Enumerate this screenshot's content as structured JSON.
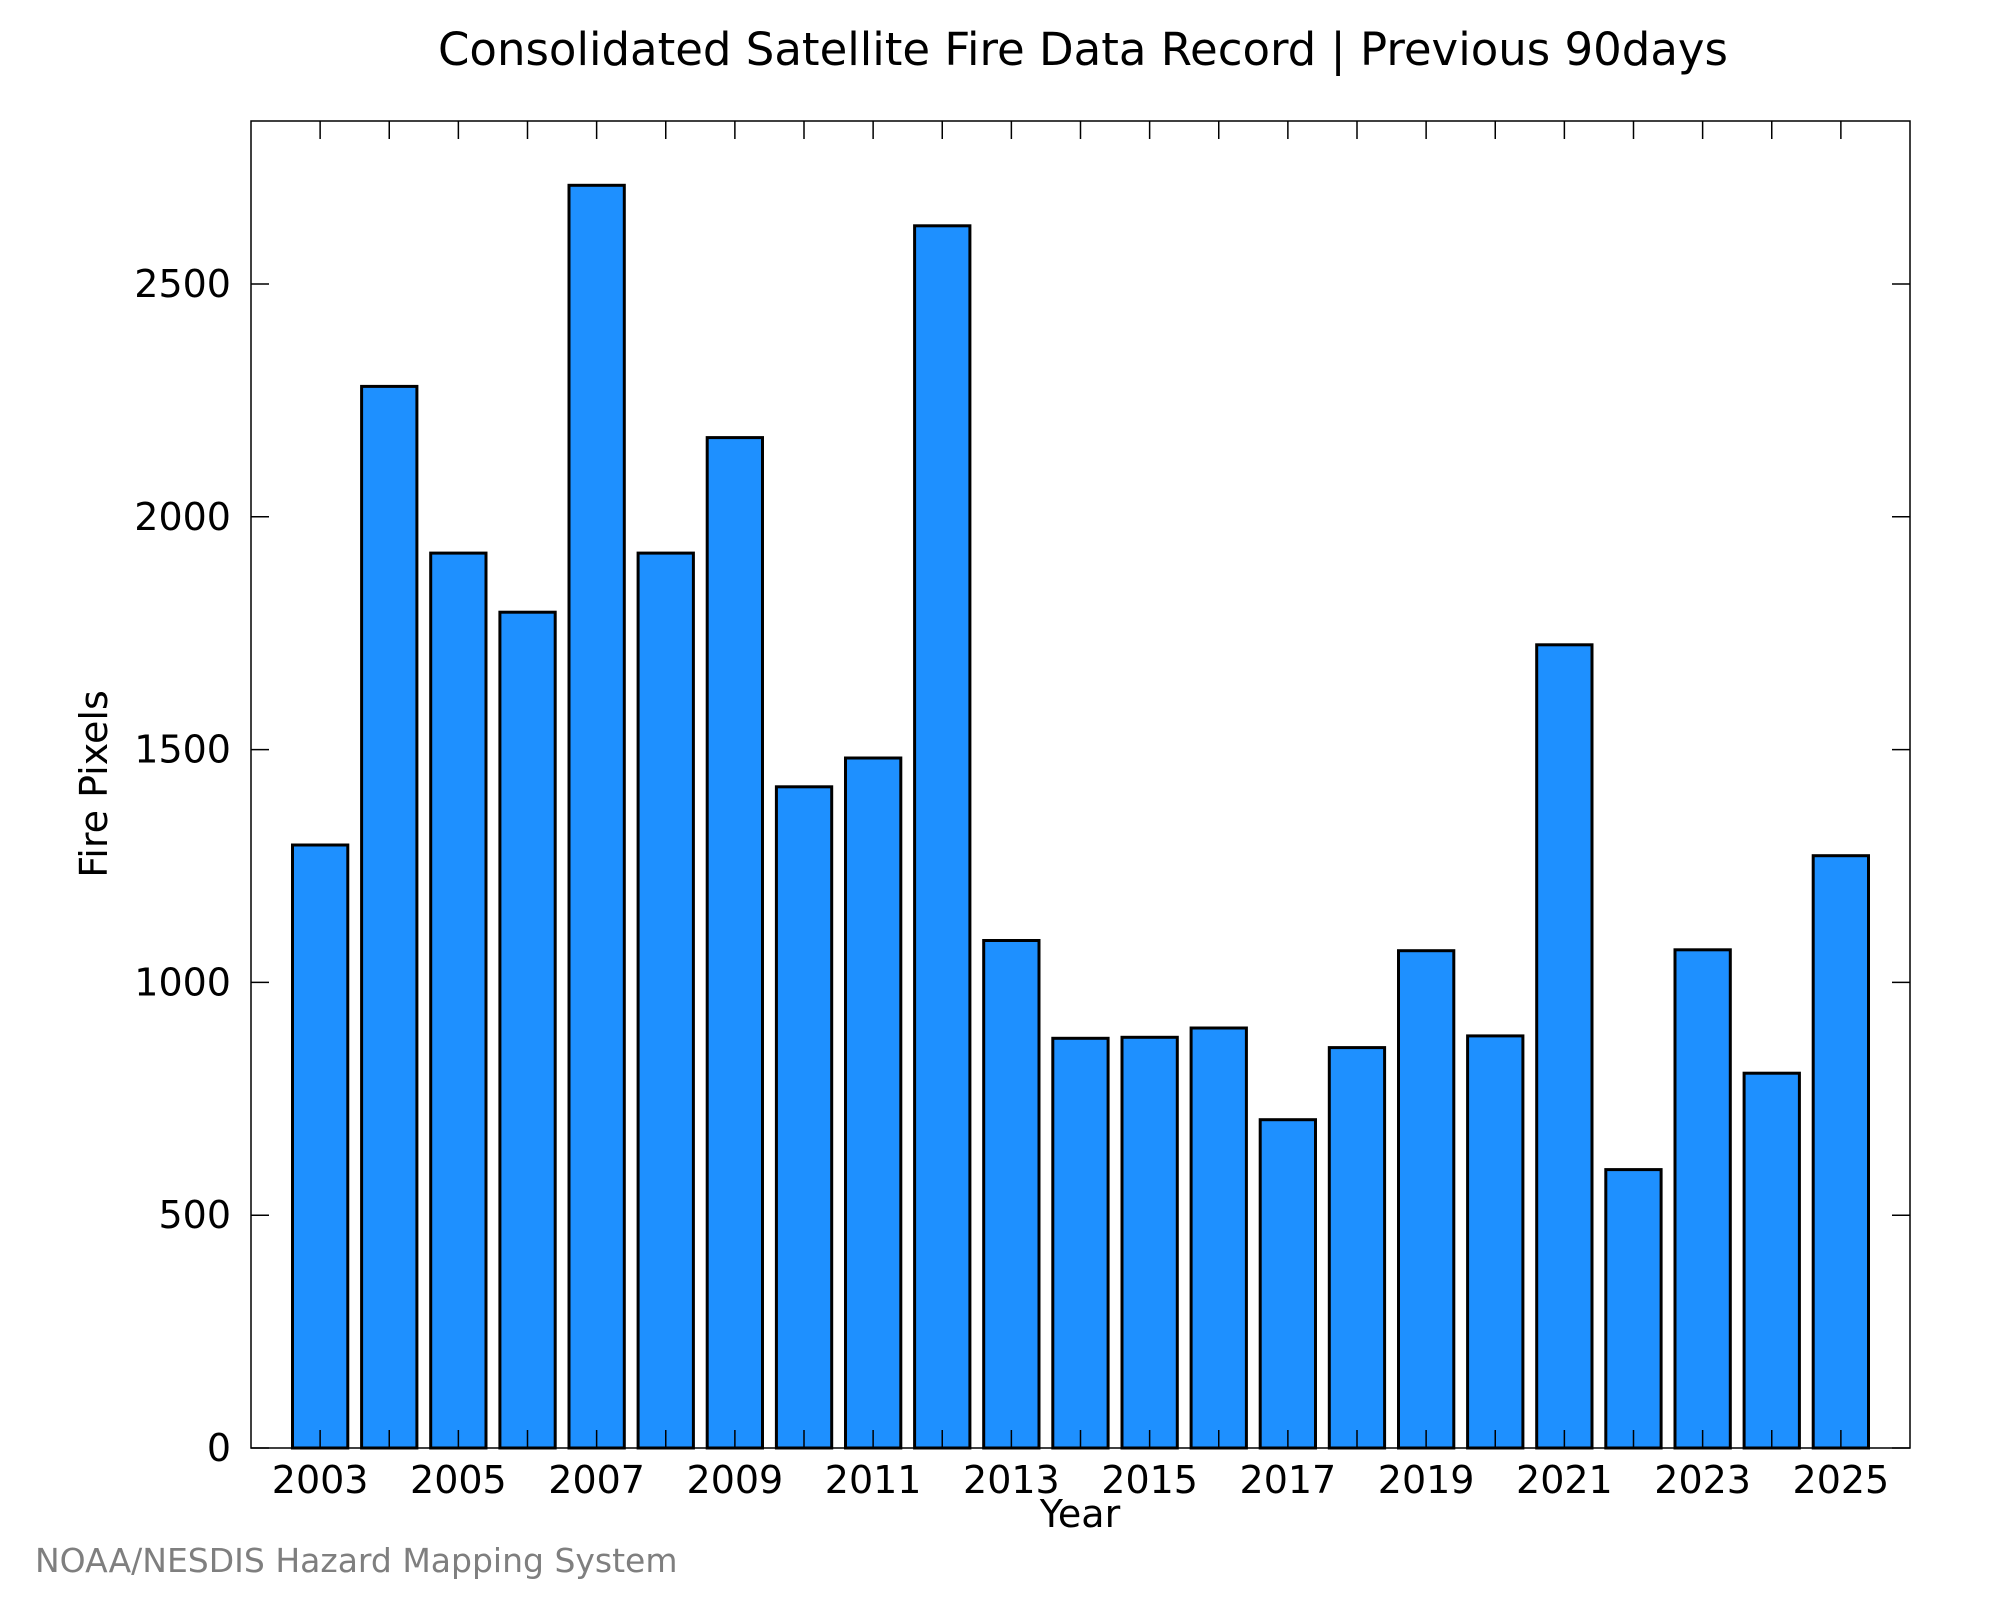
{
  "chart_data": {
    "type": "bar",
    "title": "Consolidated Satellite Fire Data Record | Previous 90days",
    "xlabel": "Year",
    "ylabel": "Fire Pixels",
    "x": [
      2003,
      2004,
      2005,
      2006,
      2007,
      2008,
      2009,
      2010,
      2011,
      2012,
      2013,
      2014,
      2015,
      2016,
      2017,
      2018,
      2019,
      2020,
      2021,
      2022,
      2023,
      2024,
      2025
    ],
    "values": [
      1295,
      2280,
      1922,
      1795,
      2712,
      1922,
      2170,
      1420,
      1482,
      2625,
      1090,
      880,
      882,
      902,
      705,
      860,
      1068,
      885,
      1725,
      598,
      1070,
      805,
      1272
    ],
    "xlim": [
      2002,
      2026
    ],
    "ylim": [
      0,
      2850
    ],
    "yticks": [
      0,
      500,
      1000,
      1500,
      2000,
      2500
    ],
    "xtick_labels": [
      2003,
      2005,
      2007,
      2009,
      2011,
      2013,
      2015,
      2017,
      2019,
      2021,
      2023,
      2025
    ],
    "bar_color": "#1e90ff",
    "grid": false,
    "legend": "none"
  },
  "credit": "NOAA/NESDIS Hazard Mapping System"
}
